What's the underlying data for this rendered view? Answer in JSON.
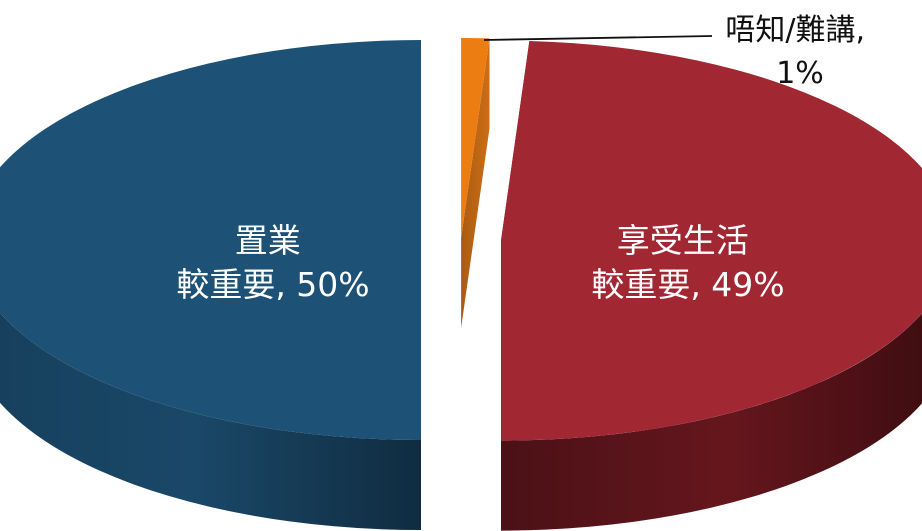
{
  "chart_data": {
    "type": "pie",
    "title": "",
    "style": "3d-exploded",
    "slices": [
      {
        "label_lines": [
          "置業",
          "較重要, 50%"
        ],
        "value": 50,
        "color": "#1d5175",
        "label_position": "inside"
      },
      {
        "label_lines": [
          "唔知/難講,",
          "1%"
        ],
        "value": 1,
        "color": "#ec7d13",
        "label_position": "outside-leader"
      },
      {
        "label_lines": [
          "享受生活",
          "較重要, 49%"
        ],
        "value": 49,
        "color": "#a12733",
        "label_position": "inside"
      }
    ]
  }
}
